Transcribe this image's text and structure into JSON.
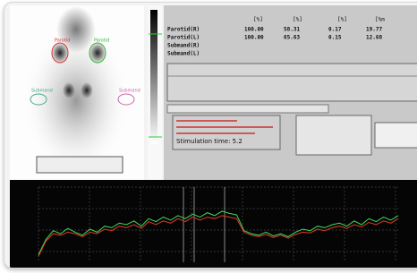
{
  "image_labels": [
    "Parotid",
    "Parotid",
    "Submand",
    "Submand"
  ],
  "table": {
    "headers": [
      "[%]",
      "[%]",
      "[%]",
      "[%m"
    ],
    "rows": [
      [
        "Parotid(R)",
        "100.00",
        "58.31",
        "0.17",
        "19.77"
      ],
      [
        "Parotid(L)",
        "100.00",
        "65.63",
        "0.15",
        "12.68"
      ],
      [
        "Submand(R)"
      ],
      [
        "Submand(L)"
      ]
    ]
  },
  "stimulation": "Stimulation time: 5.2",
  "chart_data": {
    "type": "line",
    "ylim": [
      0,
      100
    ],
    "series": [
      {
        "color": "#3ddc5a",
        "values": [
          10,
          30,
          42,
          38,
          45,
          40,
          36,
          44,
          40,
          48,
          46,
          52,
          50,
          55,
          48,
          58,
          54,
          60,
          56,
          62,
          58,
          64,
          60,
          66,
          62,
          68,
          65,
          63,
          42,
          38,
          36,
          40,
          35,
          38,
          34,
          40,
          44,
          42,
          48,
          46,
          50,
          52,
          48,
          55,
          50,
          58,
          54,
          60,
          56,
          62
        ]
      },
      {
        "color": "#e03a2a",
        "values": [
          8,
          28,
          38,
          36,
          40,
          38,
          34,
          40,
          38,
          44,
          42,
          48,
          46,
          50,
          45,
          54,
          50,
          55,
          52,
          58,
          54,
          60,
          56,
          60,
          58,
          62,
          60,
          58,
          40,
          36,
          34,
          37,
          33,
          36,
          32,
          37,
          40,
          39,
          44,
          42,
          46,
          48,
          45,
          50,
          47,
          53,
          50,
          55,
          52,
          58
        ]
      }
    ]
  }
}
